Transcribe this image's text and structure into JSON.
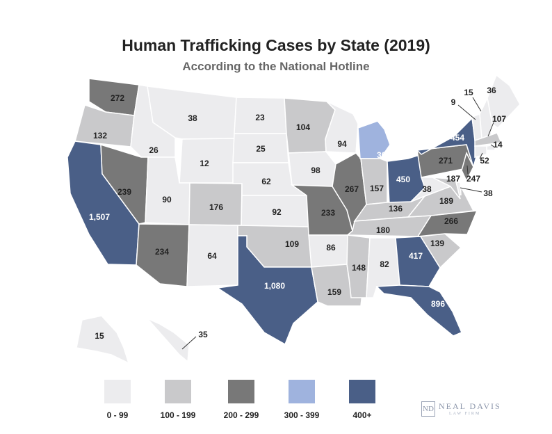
{
  "title": "Human Trafficking Cases by State (2019)",
  "subtitle": "According to the National Hotline",
  "colors": {
    "c0": "#ececee",
    "c1": "#c9c9cb",
    "c2": "#787878",
    "c3": "#9fb3de",
    "c4": "#4a5f87"
  },
  "legend": [
    {
      "label": "0 - 99",
      "color_key": "c0"
    },
    {
      "label": "100 - 199",
      "color_key": "c1"
    },
    {
      "label": "200 - 299",
      "color_key": "c2"
    },
    {
      "label": "300 - 399",
      "color_key": "c3"
    },
    {
      "label": "400+",
      "color_key": "c4"
    }
  ],
  "states": {
    "WA": "272",
    "OR": "132",
    "CA": "1,507",
    "ID": "26",
    "NV": "239",
    "MT": "38",
    "WY": "12",
    "UT": "90",
    "AZ": "234",
    "CO": "176",
    "NM": "64",
    "ND": "23",
    "SD": "25",
    "NE": "62",
    "KS": "92",
    "OK": "109",
    "TX": "1,080",
    "MN": "104",
    "IA": "98",
    "MO": "233",
    "AR": "86",
    "LA": "159",
    "WI": "94",
    "IL": "267",
    "MI": "364",
    "IN": "157",
    "OH": "450",
    "KY": "136",
    "TN": "180",
    "MS": "148",
    "AL": "82",
    "GA": "417",
    "FL": "896",
    "SC": "139",
    "NC": "266",
    "VA": "189",
    "WV": "38",
    "PA": "271",
    "NY": "454",
    "ME": "36",
    "NH": "15",
    "VT": "9",
    "MA": "107",
    "RI": "14",
    "CT": "52",
    "NJ": "247",
    "DE": "38",
    "MD": "187",
    "AK": "15",
    "HI": "35"
  },
  "logo": {
    "mark": "ND",
    "name": "NEAL DAVIS",
    "sub": "LAW FIRM"
  }
}
